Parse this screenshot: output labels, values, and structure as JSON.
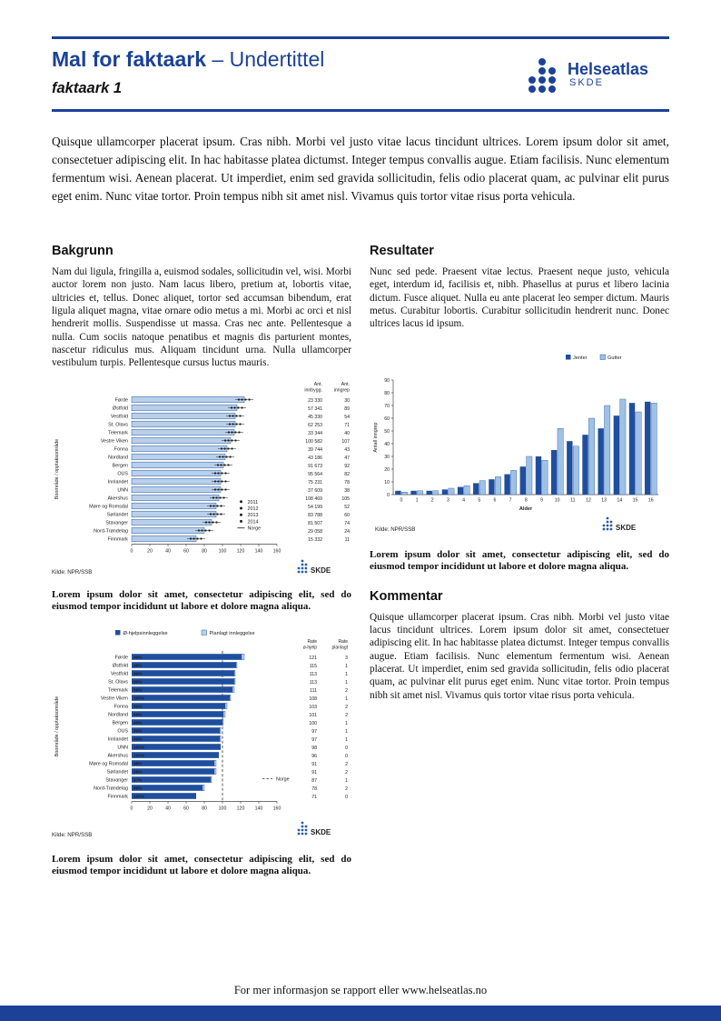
{
  "colors": {
    "primary": "#1b4298",
    "bar_dark": "#1f4e9e",
    "bar_light": "#b9d0ea",
    "bar_stroke": "#2a5ba8"
  },
  "header": {
    "title": "Mal for faktaark",
    "title_suffix": "– Undertittel",
    "doc_label": "faktaark 1",
    "logo_text": "Helseatlas",
    "logo_sub": "SKDE"
  },
  "intro": "Quisque ullamcorper placerat ipsum. Cras nibh. Morbi vel justo vitae lacus tincidunt ultrices. Lorem ipsum dolor sit amet, consectetuer adipiscing elit. In hac habitasse platea dictumst. Integer tempus convallis augue. Etiam facilisis. Nunc elementum fermentum wisi. Aenean placerat. Ut imperdiet, enim sed gravida sollicitudin, felis odio placerat quam, ac pulvinar elit purus eget enim. Nunc vitae tortor. Proin tempus nibh sit amet nisl. Vivamus quis tortor vitae risus porta vehicula.",
  "left": {
    "bakgrunn_heading": "Bakgrunn",
    "bakgrunn_body": "Nam dui ligula, fringilla a, euismod sodales, sollicitudin vel, wisi. Morbi auctor lorem non justo. Nam lacus libero, pretium at, lobortis vitae, ultricies et, tellus. Donec aliquet, tortor sed accumsan bibendum, erat ligula aliquet magna, vitae ornare odio metus a mi. Morbi ac orci et nisl hendrerit mollis. Suspendisse ut massa. Cras nec ante. Pellentesque a nulla. Cum sociis natoque penatibus et magnis dis parturient montes, nascetur ridiculus mus. Aliquam tincidunt urna. Nulla ullamcorper vestibulum turpis. Pellentesque cursus luctus mauris."
  },
  "right": {
    "resultater_heading": "Resultater",
    "resultater_body": "Nunc sed pede. Praesent vitae lectus. Praesent neque justo, vehicula eget, interdum id, facilisis et, nibh. Phasellus at purus et libero lacinia dictum. Fusce aliquet. Nulla eu ante placerat leo semper dictum. Mauris metus. Curabitur lobortis. Curabitur sollicitudin hendrerit nunc. Donec ultrices lacus id ipsum.",
    "kommentar_heading": "Kommentar",
    "kommentar_body": "Quisque ullamcorper placerat ipsum. Cras nibh. Morbi vel justo vitae lacus tincidunt ultrices. Lorem ipsum dolor sit amet, consectetuer adipiscing elit. In hac habitasse platea dictumst. Integer tempus convallis augue. Etiam facilisis. Nunc elementum fermentum wisi. Aenean placerat. Ut imperdiet, enim sed gravida sollicitudin, felis odio placerat quam, ac pulvinar elit purus eget enim. Nunc vitae tortor. Proin tempus nibh sit amet nisl. Vivamus quis tortor vitae risus porta vehicula."
  },
  "captions": {
    "chart1": "Lorem ipsum dolor sit amet, consectetur adipiscing elit, sed do eiusmod tempor incididunt ut labore et dolore magna aliqua.",
    "chart2": "Lorem ipsum dolor sit amet, consectetur adipiscing elit, sed do eiusmod tempor incididunt ut labore et dolore magna aliqua.",
    "chart3": "Lorem ipsum dolor sit amet, consectetur adipiscing elit, sed do eiusmod tempor incididunt ut labore et dolore magna aliqua."
  },
  "footer": {
    "text": "For mer informasjon se rapport eller www.helseatlas.no"
  },
  "charts_common": {
    "skde": "SKDE",
    "source": "Kilde: NPR/SSB"
  },
  "chart_data": [
    {
      "type": "bar",
      "name": "rate-per-boomraade",
      "orientation": "horizontal",
      "ylabel": "Boområde / opptaksområde",
      "xlim": [
        0,
        160
      ],
      "xticks": [
        0,
        20,
        40,
        60,
        80,
        100,
        120,
        140,
        160
      ],
      "col_headers": [
        [
          "Ant.",
          "innbygg."
        ],
        [
          "Ant.",
          "inngrep"
        ]
      ],
      "legend": [
        "2011",
        "2012",
        "2013",
        "2014",
        "Norge"
      ],
      "source": "Kilde: NPR/SSB",
      "categories": [
        "Førde",
        "Østfold",
        "Vestfold",
        "St. Olavs",
        "Telemark",
        "Vestre Viken",
        "Fonna",
        "Nordland",
        "Bergen",
        "OUS",
        "Innlandet",
        "UNN",
        "Akershus",
        "Møre og Romsdal",
        "Sørlandet",
        "Stavanger",
        "Nord-Trøndelag",
        "Finnmark"
      ],
      "values": [
        124,
        116,
        114,
        114,
        113,
        109,
        105,
        103,
        101,
        98,
        98,
        98,
        96,
        93,
        93,
        88,
        80,
        71
      ],
      "innbygg": [
        "23 330",
        "57 341",
        "45 330",
        "62 253",
        "33 344",
        "100 582",
        "39 744",
        "43 186",
        "91 673",
        "95 564",
        "75 231",
        "37 609",
        "108 469",
        "54 199",
        "83 788",
        "81 507",
        "29 058",
        "15 332"
      ],
      "inngrep": [
        "30",
        "89",
        "54",
        "71",
        "40",
        "107",
        "43",
        "47",
        "92",
        "82",
        "78",
        "38",
        "105",
        "52",
        "60",
        "74",
        "24",
        "11"
      ]
    },
    {
      "type": "bar",
      "name": "antall-inngrep-etter-alder",
      "orientation": "vertical",
      "xlabel": "Alder",
      "ylabel": "Antall inngrep",
      "ylim": [
        0,
        90
      ],
      "yticks": [
        0,
        10,
        20,
        30,
        40,
        50,
        60,
        70,
        80,
        90
      ],
      "categories": [
        "0",
        "1",
        "2",
        "3",
        "4",
        "5",
        "6",
        "7",
        "8",
        "9",
        "10",
        "11",
        "12",
        "13",
        "14",
        "15",
        "16"
      ],
      "series": [
        {
          "name": "Jenter",
          "color": "#1f4e9e",
          "values": [
            3,
            3,
            3,
            4,
            6,
            9,
            12,
            16,
            22,
            30,
            35,
            42,
            47,
            52,
            62,
            72,
            73
          ]
        },
        {
          "name": "Gutter",
          "color": "#9fc1e4",
          "values": [
            2,
            3,
            3,
            5,
            7,
            11,
            14,
            19,
            30,
            27,
            52,
            38,
            60,
            70,
            75,
            65,
            72
          ]
        }
      ],
      "source": "Kilde: NPR/SSB"
    },
    {
      "type": "bar",
      "name": "innleggelser-stacked",
      "orientation": "horizontal",
      "stacked": true,
      "ylabel": "Boområde / opptaksområde",
      "xlim": [
        0,
        160
      ],
      "xticks": [
        0,
        20,
        40,
        60,
        80,
        100,
        120,
        140,
        160
      ],
      "reference_line": 100,
      "reference_label": "Norge",
      "legend": [
        "Ø-hjelpsinnleggelse",
        "Planlagt innleggelse"
      ],
      "col_headers": [
        [
          "Rate",
          "ø-hjelp"
        ],
        [
          "Rate",
          "planlagt"
        ]
      ],
      "source": "Kilde: NPR/SSB",
      "categories": [
        "Førde",
        "Østfold",
        "Vestfold",
        "St. Olavs",
        "Telemark",
        "Vestre Viken",
        "Fonna",
        "Nordland",
        "Bergen",
        "OUS",
        "Innlandet",
        "UNN",
        "Akershus",
        "Møre og Romsdal",
        "Sørlandet",
        "Stavanger",
        "Nord-Trøndelag",
        "Finnmark"
      ],
      "pct_labels": [
        "99%",
        "98%",
        "99%",
        "99%",
        "99%",
        "100%",
        "99%",
        "99%",
        "99%",
        "99%",
        "99%",
        "100%",
        "100%",
        "98%",
        "98%",
        "97%",
        "98%",
        "100%"
      ],
      "rate_ohjelp": [
        121,
        115,
        113,
        113,
        111,
        108,
        103,
        101,
        100,
        97,
        97,
        98,
        96,
        91,
        91,
        87,
        78,
        71
      ],
      "rate_planlagt": [
        3,
        1,
        1,
        1,
        2,
        1,
        2,
        2,
        1,
        1,
        1,
        0,
        0,
        2,
        2,
        1,
        2,
        0
      ]
    }
  ]
}
